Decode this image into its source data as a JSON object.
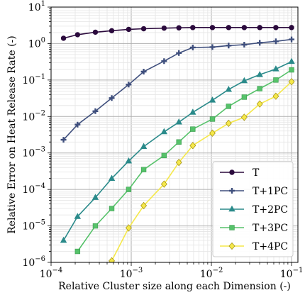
{
  "chart_data": {
    "type": "line",
    "xlabel": "Relative Cluster size along each Dimension (-)",
    "ylabel": "Relative Error on Heat Release Rate (-)",
    "xscale": "log",
    "yscale": "log",
    "xlim": [
      0.0001,
      0.12
    ],
    "ylim": [
      1e-06,
      10
    ],
    "grid": true,
    "legend_position": "lower-right",
    "x_ticks": [
      {
        "base": "10",
        "exp": "−4"
      },
      {
        "base": "10",
        "exp": "−3"
      },
      {
        "base": "10",
        "exp": "−2"
      },
      {
        "base": "10",
        "exp": "−1"
      }
    ],
    "y_ticks": [
      {
        "base": "10",
        "exp": "−6"
      },
      {
        "base": "10",
        "exp": "−5"
      },
      {
        "base": "10",
        "exp": "−4"
      },
      {
        "base": "10",
        "exp": "−3"
      },
      {
        "base": "10",
        "exp": "−2"
      },
      {
        "base": "10",
        "exp": "−1"
      },
      {
        "base": "10",
        "exp": "0"
      },
      {
        "base": "10",
        "exp": "1"
      }
    ],
    "x": [
      0.000143,
      0.000214,
      0.000357,
      0.000571,
      0.000929,
      0.00143,
      0.00257,
      0.00393,
      0.00586,
      0.0103,
      0.0164,
      0.0257,
      0.0401,
      0.0637,
      0.1
    ],
    "series": [
      {
        "name": "T",
        "marker": "circle",
        "color": "#2b0a3d",
        "values": [
          1.4,
          1.75,
          2.05,
          2.25,
          2.45,
          2.55,
          2.65,
          2.7,
          2.75,
          2.75,
          2.75,
          2.75,
          2.75,
          2.75,
          2.75
        ]
      },
      {
        "name": "T+1PC",
        "marker": "plus",
        "color": "#3f4f7d",
        "values": [
          0.0023,
          0.006,
          0.014,
          0.032,
          0.075,
          0.17,
          0.33,
          0.55,
          0.78,
          0.8,
          0.88,
          0.93,
          1.05,
          1.15,
          1.3
        ]
      },
      {
        "name": "T+2PC",
        "marker": "triangle",
        "color": "#2a8a8a",
        "values": [
          4e-06,
          1.8e-05,
          6e-05,
          0.0002,
          0.0006,
          0.0015,
          0.0038,
          0.007,
          0.013,
          0.028,
          0.055,
          0.095,
          0.14,
          0.2,
          0.32
        ]
      },
      {
        "name": "T+3PC",
        "marker": "square",
        "color": "#56c26a",
        "values": [
          null,
          2e-06,
          1e-05,
          3e-05,
          0.0001,
          0.00035,
          0.00085,
          0.002,
          0.0045,
          0.0085,
          0.019,
          0.034,
          0.058,
          0.1,
          0.19
        ]
      },
      {
        "name": "T+4PC",
        "marker": "diamond",
        "color": "#f5e84a",
        "values": [
          null,
          null,
          null,
          1.1e-06,
          8.8e-06,
          3.6e-05,
          0.00014,
          0.00055,
          0.0016,
          0.0035,
          0.0065,
          0.0095,
          0.022,
          0.036,
          0.09
        ]
      }
    ]
  }
}
